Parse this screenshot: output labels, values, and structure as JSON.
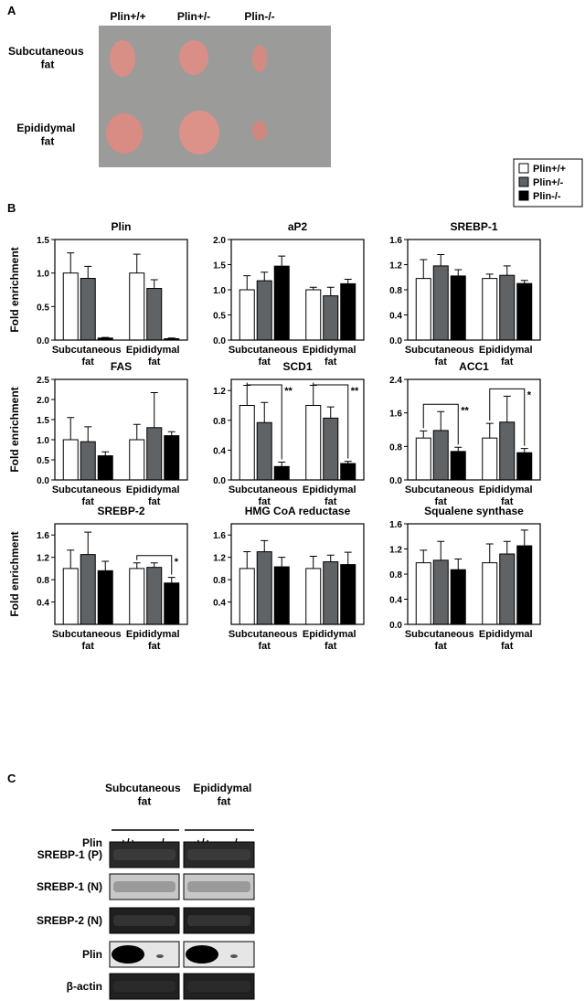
{
  "panels": [
    "A",
    "B",
    "C"
  ],
  "panel_a": {
    "columns": [
      "Plin+/+",
      "Plin+/-",
      "Plin-/-"
    ],
    "rows": [
      "Subcutaneous fat",
      "Epididymal fat"
    ]
  },
  "legend": {
    "entries": [
      {
        "name": "Plin+/+",
        "color": "#ffffff"
      },
      {
        "name": "Plin+/-",
        "color": "#5f6366"
      },
      {
        "name": "Plin-/-",
        "color": "#000000"
      }
    ]
  },
  "chart_data": [
    {
      "type": "bar",
      "title": "Plin",
      "ylabel": "Fold enrichment",
      "categories": [
        "Subcutaneous fat",
        "Epididymal fat"
      ],
      "ylim": [
        0,
        1.5
      ],
      "yticks": [
        {
          "value": 0,
          "label": "0.0"
        },
        0.5,
        {
          "value": 1,
          "label": "1.0"
        },
        1.5
      ],
      "series": [
        {
          "values": [
            1.0,
            1.0
          ],
          "errors": [
            0.3,
            0.28
          ]
        },
        {
          "values": [
            0.92,
            0.77
          ],
          "errors": [
            0.18,
            0.13
          ]
        },
        {
          "values": [
            0.03,
            0.02
          ],
          "errors": [
            0.01,
            0.01
          ]
        }
      ]
    },
    {
      "type": "bar",
      "title": "aP2",
      "categories": [
        "Subcutaneous fat",
        "Epididymal fat"
      ],
      "ylim": [
        0,
        2
      ],
      "yticks": [
        {
          "value": 0,
          "label": "0.0"
        },
        0.5,
        {
          "value": 1,
          "label": "1.0"
        },
        1.5,
        {
          "value": 2,
          "label": "2.0"
        }
      ],
      "series": [
        {
          "values": [
            1.0,
            1.0
          ],
          "errors": [
            0.28,
            0.05
          ]
        },
        {
          "values": [
            1.18,
            0.88
          ],
          "errors": [
            0.17,
            0.17
          ]
        },
        {
          "values": [
            1.47,
            1.12
          ],
          "errors": [
            0.2,
            0.09
          ]
        }
      ]
    },
    {
      "type": "bar",
      "title": "SREBP-1",
      "categories": [
        "Subcutaneous fat",
        "Epididymal fat"
      ],
      "ylim": [
        0,
        1.6
      ],
      "yticks": [
        {
          "value": 0,
          "label": "0.0"
        },
        0.4,
        0.8,
        1.2,
        1.6
      ],
      "series": [
        {
          "values": [
            0.98,
            0.98
          ],
          "errors": [
            0.3,
            0.07
          ]
        },
        {
          "values": [
            1.18,
            1.03
          ],
          "errors": [
            0.18,
            0.15
          ]
        },
        {
          "values": [
            1.02,
            0.9
          ],
          "errors": [
            0.1,
            0.05
          ]
        }
      ]
    },
    {
      "type": "bar",
      "title": "FAS",
      "ylabel": "Fold enrichment",
      "categories": [
        "Subcutaneous fat",
        "Epididymal fat"
      ],
      "ylim": [
        0,
        2.5
      ],
      "yticks": [
        {
          "value": 0,
          "label": "0.0"
        },
        0.5,
        {
          "value": 1,
          "label": "1.0"
        },
        1.5,
        {
          "value": 2,
          "label": "2.0"
        },
        2.5
      ],
      "series": [
        {
          "values": [
            1.0,
            1.0
          ],
          "errors": [
            0.55,
            0.38
          ]
        },
        {
          "values": [
            0.95,
            1.3
          ],
          "errors": [
            0.37,
            0.87
          ]
        },
        {
          "values": [
            0.6,
            1.1
          ],
          "errors": [
            0.1,
            0.1
          ]
        }
      ]
    },
    {
      "type": "bar",
      "title": "SCD1",
      "categories": [
        "Subcutaneous fat",
        "Epididymal fat"
      ],
      "ylim": [
        0,
        1.35
      ],
      "yticks": [
        {
          "value": 0,
          "label": "0.0"
        },
        0.4,
        0.8,
        1.2
      ],
      "significance": [
        "**",
        "**"
      ],
      "series": [
        {
          "values": [
            1.0,
            1.0
          ],
          "errors": [
            0.27,
            0.27
          ]
        },
        {
          "values": [
            0.77,
            0.83
          ],
          "errors": [
            0.27,
            0.15
          ]
        },
        {
          "values": [
            0.18,
            0.22
          ],
          "errors": [
            0.06,
            0.03
          ]
        }
      ]
    },
    {
      "type": "bar",
      "title": "ACC1",
      "categories": [
        "Subcutaneous fat",
        "Epididymal fat"
      ],
      "ylim": [
        0,
        2.4
      ],
      "yticks": [
        {
          "value": 0,
          "label": "0.0"
        },
        0.8,
        1.6,
        2.4
      ],
      "significance": [
        "**",
        "*"
      ],
      "series": [
        {
          "values": [
            1.0,
            1.0
          ],
          "errors": [
            0.17,
            0.35
          ]
        },
        {
          "values": [
            1.18,
            1.38
          ],
          "errors": [
            0.45,
            0.62
          ]
        },
        {
          "values": [
            0.68,
            0.65
          ],
          "errors": [
            0.1,
            0.1
          ]
        }
      ]
    },
    {
      "type": "bar",
      "title": "SREBP-2",
      "ylabel": "Fold enrichment",
      "categories": [
        "Subcutaneous fat",
        "Epididymal fat"
      ],
      "ylim": [
        0,
        1.8
      ],
      "yticks": [
        0.4,
        0.8,
        1.2,
        1.6
      ],
      "significance": [
        null,
        "*"
      ],
      "series": [
        {
          "values": [
            1.0,
            1.0
          ],
          "errors": [
            0.33,
            0.1
          ]
        },
        {
          "values": [
            1.25,
            1.02
          ],
          "errors": [
            0.4,
            0.08
          ]
        },
        {
          "values": [
            0.96,
            0.74
          ],
          "errors": [
            0.17,
            0.1
          ]
        }
      ]
    },
    {
      "type": "bar",
      "title": "HMG CoA reductase",
      "categories": [
        "Subcutaneous fat",
        "Epididymal fat"
      ],
      "ylim": [
        0,
        1.8
      ],
      "yticks": [
        0.4,
        0.8,
        1.2,
        1.6
      ],
      "series": [
        {
          "values": [
            1.0,
            1.0
          ],
          "errors": [
            0.3,
            0.22
          ]
        },
        {
          "values": [
            1.3,
            1.12
          ],
          "errors": [
            0.2,
            0.12
          ]
        },
        {
          "values": [
            1.03,
            1.07
          ],
          "errors": [
            0.17,
            0.22
          ]
        }
      ]
    },
    {
      "type": "bar",
      "title": "Squalene synthase",
      "categories": [
        "Subcutaneous fat",
        "Epididymal fat"
      ],
      "ylim": [
        0,
        1.6
      ],
      "yticks": [
        {
          "value": 0,
          "label": "0.0"
        },
        0.4,
        0.8,
        1.2,
        1.6
      ],
      "series": [
        {
          "values": [
            0.98,
            0.98
          ],
          "errors": [
            0.2,
            0.3
          ]
        },
        {
          "values": [
            1.02,
            1.12
          ],
          "errors": [
            0.3,
            0.2
          ]
        },
        {
          "values": [
            0.87,
            1.25
          ],
          "errors": [
            0.17,
            0.25
          ]
        }
      ]
    }
  ],
  "panel_c": {
    "groups": [
      "Subcutaneous fat",
      "Epididymal fat"
    ],
    "genotype_label": "Plin",
    "genotypes": [
      "+/+",
      "-/-",
      "+/+",
      "-/-"
    ],
    "rows": [
      "SREBP-1 (P)",
      "SREBP-1 (N)",
      "SREBP-2 (N)",
      "Plin",
      "β-actin"
    ]
  }
}
